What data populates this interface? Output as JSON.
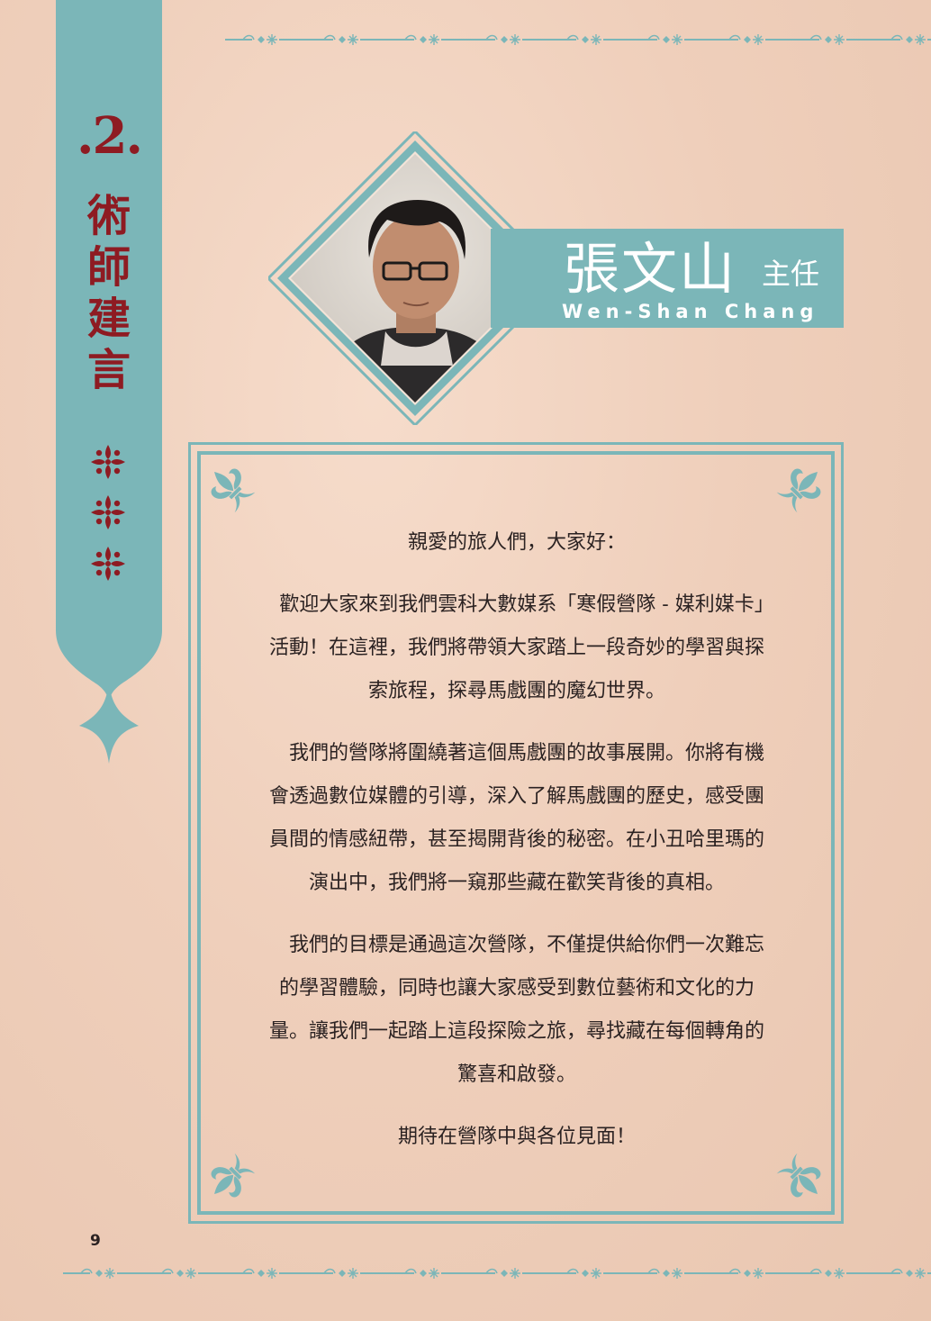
{
  "sidebar": {
    "chapter_number": ".2.",
    "chapter_title_chars": [
      "術",
      "師",
      "建",
      "言"
    ]
  },
  "profile": {
    "name_cn": "張文山",
    "role": "主任",
    "name_en": "Wen-Shan Chang"
  },
  "letter": {
    "greeting": "親愛的旅人們，大家好：",
    "paragraphs": [
      [
        "　歡迎大家來到我們雲科大數媒系「寒假營隊 - 媒利媒卡」",
        "活動！在這裡，我們將帶領大家踏上一段奇妙的學習與探",
        "索旅程，探尋馬戲團的魔幻世界。"
      ],
      [
        "　我們的營隊將圍繞著這個馬戲團的故事展開。你將有機",
        "會透過數位媒體的引導，深入了解馬戲團的歷史，感受團",
        "員間的情感紐帶，甚至揭開背後的秘密。在小丑哈里瑪的",
        "演出中，我們將一窺那些藏在歡笑背後的真相。"
      ],
      [
        "　我們的目標是通過這次營隊，不僅提供給你們一次難忘",
        "的學習體驗，同時也讓大家感受到數位藝術和文化的力",
        "量。讓我們一起踏上這段探險之旅，尋找藏在每個轉角的",
        "驚喜和啟發。"
      ]
    ],
    "closing": "期待在營隊中與各位見面！"
  },
  "footer": {
    "page_number": "9"
  },
  "colors": {
    "teal": "#7bb6b8",
    "crimson": "#8e1b22",
    "paper": "#efcfbb",
    "text": "#2b2222"
  }
}
